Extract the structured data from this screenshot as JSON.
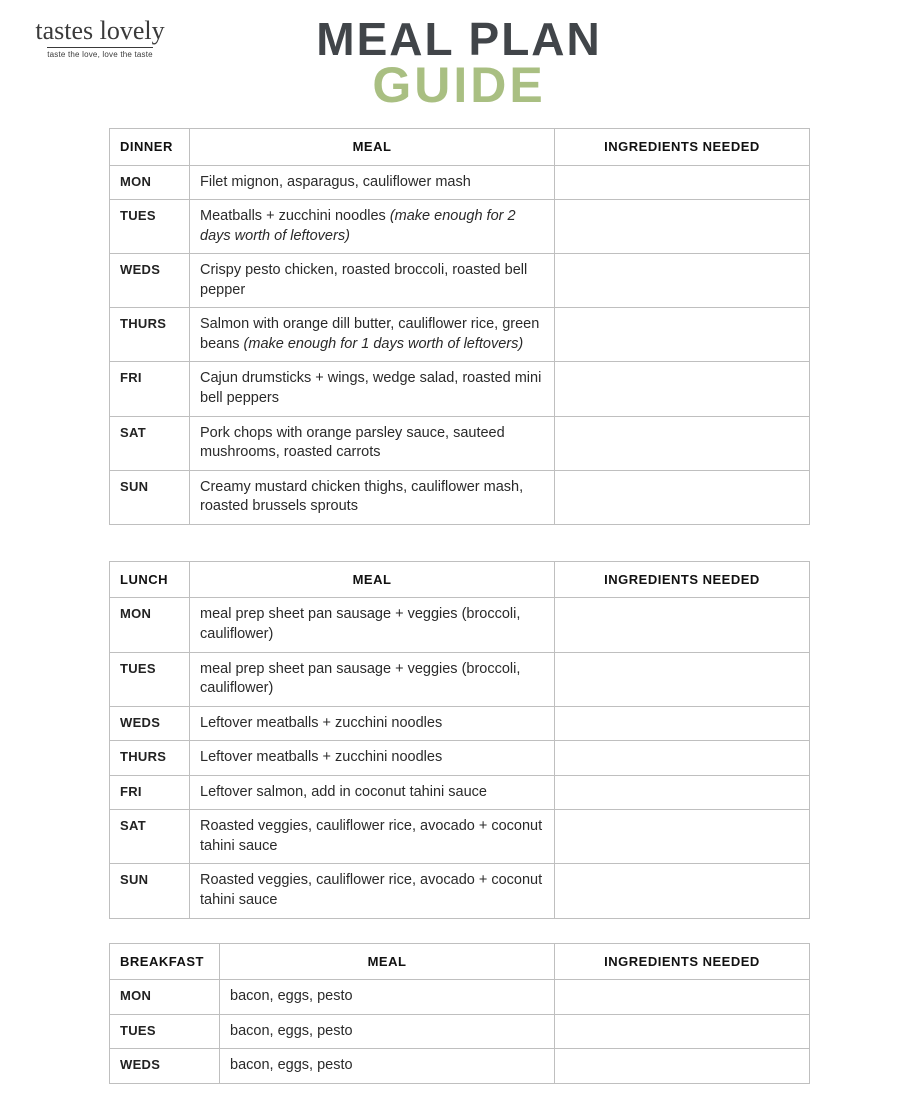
{
  "logo": {
    "brand": "tastes lovely",
    "tagline": "taste the love, love the taste"
  },
  "title": {
    "line1": "MEAL PLAN",
    "line2": "GUIDE",
    "color_main": "#414549",
    "color_accent": "#a9bf82"
  },
  "columns": {
    "meal": "MEAL",
    "ingredients": "INGREDIENTS NEEDED"
  },
  "tables": [
    {
      "header": "DINNER",
      "variant": "std",
      "rows": [
        {
          "day": "MON",
          "meal": "Filet mignon, asparagus, cauliflower mash",
          "note": "",
          "ingredients": ""
        },
        {
          "day": "TUES",
          "meal": "Meatballs + zucchini noodles ",
          "note": "(make enough for 2 days worth of leftovers)",
          "ingredients": ""
        },
        {
          "day": "WEDS",
          "meal": "Crispy pesto chicken, roasted broccoli, roasted bell pepper",
          "note": "",
          "ingredients": ""
        },
        {
          "day": "THURS",
          "meal": "Salmon with orange dill butter, cauliflower rice, green beans ",
          "note": "(make enough for 1 days worth of leftovers)",
          "ingredients": ""
        },
        {
          "day": "FRI",
          "meal": "Cajun drumsticks + wings, wedge salad, roasted mini bell peppers",
          "note": "",
          "ingredients": ""
        },
        {
          "day": "SAT",
          "meal": "Pork chops with orange parsley sauce, sauteed mushrooms, roasted carrots",
          "note": "",
          "ingredients": ""
        },
        {
          "day": "SUN",
          "meal": "Creamy mustard chicken thighs, cauliflower mash, roasted brussels sprouts",
          "note": "",
          "ingredients": ""
        }
      ]
    },
    {
      "header": "LUNCH",
      "variant": "std",
      "rows": [
        {
          "day": "MON",
          "meal": "meal prep sheet pan sausage + veggies (broccoli, cauliflower)",
          "note": "",
          "ingredients": ""
        },
        {
          "day": "TUES",
          "meal": "meal prep sheet pan sausage + veggies (broccoli, cauliflower)",
          "note": "",
          "ingredients": ""
        },
        {
          "day": "WEDS",
          "meal": "Leftover meatballs + zucchini noodles",
          "note": "",
          "ingredients": ""
        },
        {
          "day": "THURS",
          "meal": "Leftover meatballs + zucchini noodles",
          "note": "",
          "ingredients": ""
        },
        {
          "day": "FRI",
          "meal": "Leftover salmon, add in coconut tahini sauce",
          "note": "",
          "ingredients": ""
        },
        {
          "day": "SAT",
          "meal": "Roasted veggies, cauliflower rice, avocado + coconut tahini sauce",
          "note": "",
          "ingredients": ""
        },
        {
          "day": "SUN",
          "meal": "Roasted veggies, cauliflower rice, avocado + coconut tahini sauce",
          "note": "",
          "ingredients": ""
        }
      ]
    },
    {
      "header": "BREAKFAST",
      "variant": "bkf",
      "rows": [
        {
          "day": "MON",
          "meal": "bacon, eggs, pesto",
          "note": "",
          "ingredients": ""
        },
        {
          "day": "TUES",
          "meal": "bacon, eggs, pesto",
          "note": "",
          "ingredients": ""
        },
        {
          "day": "WEDS",
          "meal": "bacon, eggs, pesto",
          "note": "",
          "ingredients": ""
        }
      ]
    }
  ]
}
